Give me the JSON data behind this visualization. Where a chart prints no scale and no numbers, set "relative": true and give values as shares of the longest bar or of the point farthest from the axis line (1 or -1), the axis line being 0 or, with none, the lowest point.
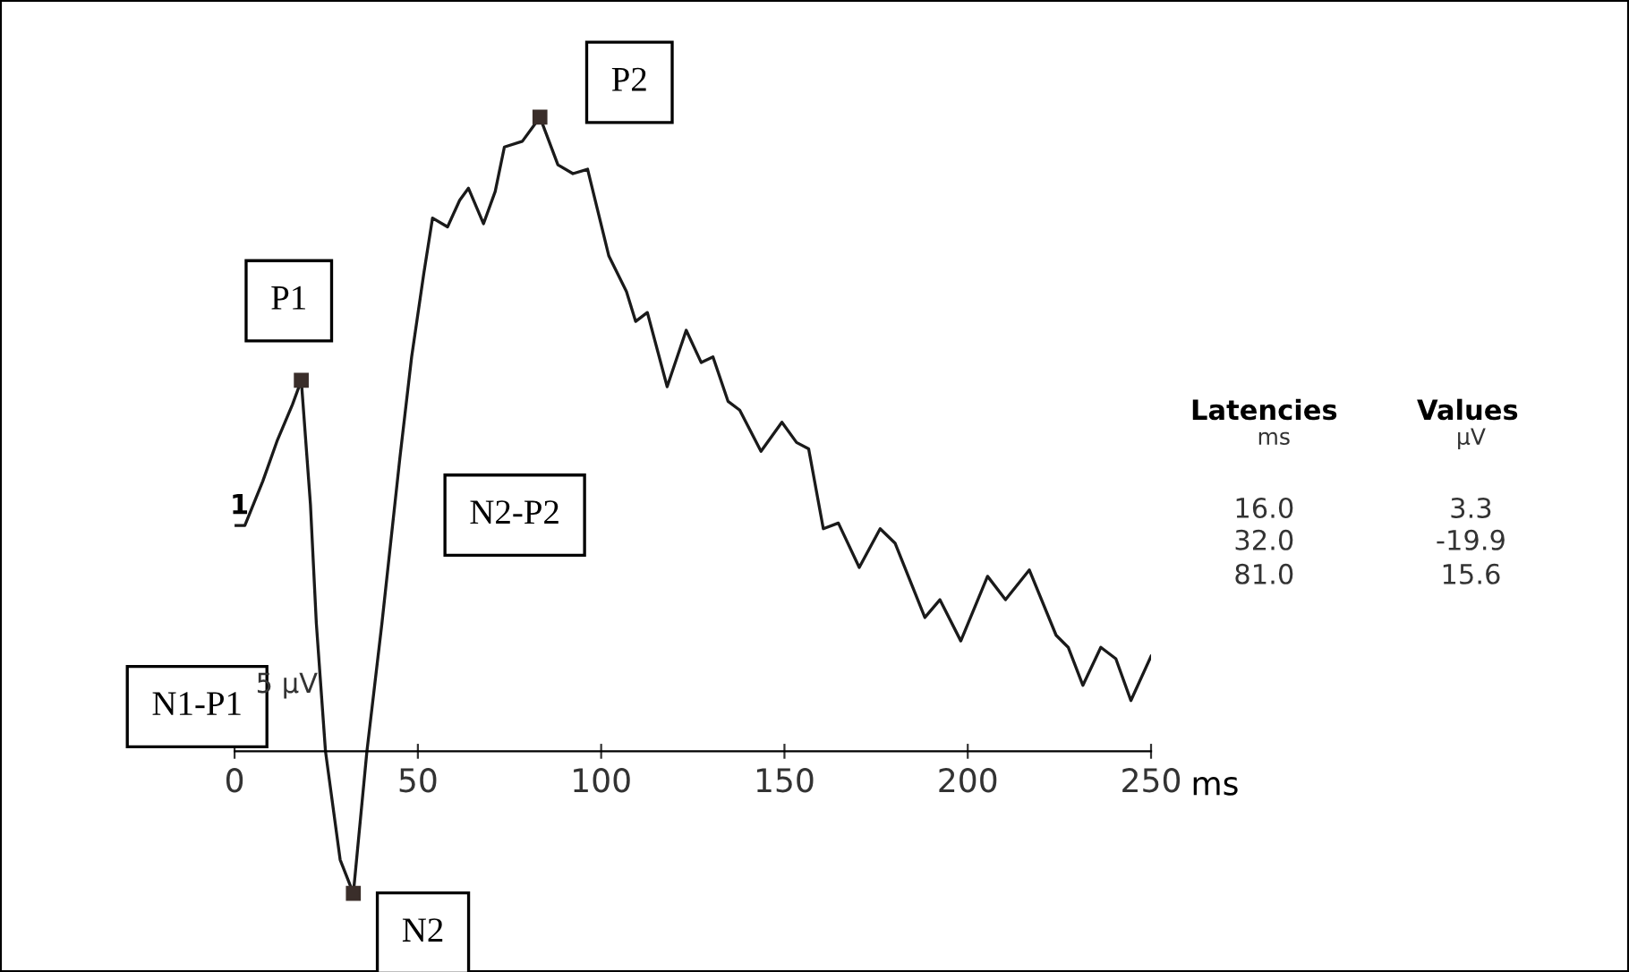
{
  "chart_data": {
    "type": "line",
    "relative": true,
    "xlabel": "ms",
    "xlim": [
      0,
      250
    ],
    "xticks": [
      0,
      50,
      100,
      150,
      200,
      250
    ],
    "series": [
      {
        "color": "#1a1a1a",
        "line_style": "solid",
        "x": [
          0,
          2.8,
          7.7,
          11.7,
          15.8,
          18.2,
          20.7,
          22.3,
          24.8,
          28.8,
          32.4,
          36.1,
          40.2,
          45.1,
          48.3,
          51.6,
          54.0,
          58.1,
          61.4,
          63.8,
          67.9,
          71.1,
          73.6,
          78.5,
          83.3,
          88.2,
          92.3,
          96.3,
          102.1,
          106.9,
          109.4,
          112.6,
          118.0,
          123.2,
          127.3,
          130.5,
          134.6,
          137.8,
          143.6,
          149.3,
          153.3,
          156.6,
          160.6,
          164.7,
          170.4,
          176.1,
          180.2,
          188.3,
          192.4,
          198.1,
          205.4,
          210.3,
          216.8,
          224.1,
          227.4,
          231.4,
          236.3,
          240.4,
          244.5,
          250
        ],
        "values": [
          0.356,
          0.356,
          0.426,
          0.491,
          0.547,
          0.585,
          0.389,
          0.202,
          0,
          -0.171,
          -0.224,
          0,
          0.202,
          0.463,
          0.622,
          0.753,
          0.841,
          0.827,
          0.869,
          0.888,
          0.832,
          0.883,
          0.953,
          0.962,
          1.0,
          0.925,
          0.911,
          0.918,
          0.781,
          0.725,
          0.678,
          0.692,
          0.575,
          0.664,
          0.613,
          0.622,
          0.552,
          0.538,
          0.473,
          0.519,
          0.487,
          0.477,
          0.351,
          0.36,
          0.29,
          0.351,
          0.328,
          0.211,
          0.239,
          0.174,
          0.276,
          0.239,
          0.286,
          0.183,
          0.164,
          0.104,
          0.164,
          0.146,
          0.08,
          0.15
        ]
      }
    ],
    "annotations": [
      {
        "text": "P1",
        "x": 18.2,
        "y": 0.585
      },
      {
        "text": "N2",
        "x": 32.4,
        "y": -0.224
      },
      {
        "text": "P2",
        "x": 83.3,
        "y": 1.0
      },
      "N1-P1",
      "N2-P2",
      "1",
      "5 µV",
      "Latencies",
      "ms",
      "Values",
      "µV",
      "16.0",
      "32.0",
      "81.0",
      "3.3",
      "-19.9",
      "15.6"
    ]
  }
}
